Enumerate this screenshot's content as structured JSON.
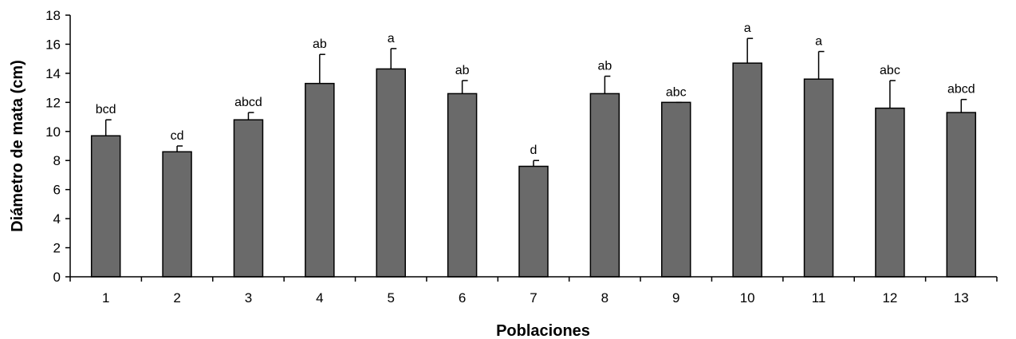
{
  "chart_data": {
    "type": "bar",
    "title": "",
    "xlabel": "Poblaciones",
    "ylabel": "Diámetro de mata (cm)",
    "ylim": [
      0,
      18
    ],
    "yticks": [
      0,
      2,
      4,
      6,
      8,
      10,
      12,
      14,
      16,
      18
    ],
    "categories": [
      "1",
      "2",
      "3",
      "4",
      "5",
      "6",
      "7",
      "8",
      "9",
      "10",
      "11",
      "12",
      "13"
    ],
    "values": [
      9.7,
      8.6,
      10.8,
      13.3,
      14.3,
      12.6,
      7.6,
      12.6,
      12.0,
      14.7,
      13.6,
      11.6,
      11.3
    ],
    "error_upper": [
      1.1,
      0.4,
      0.5,
      2.0,
      1.4,
      0.9,
      0.4,
      1.2,
      0.0,
      1.7,
      1.9,
      1.9,
      0.9
    ],
    "significance_labels": [
      "bcd",
      "cd",
      "abcd",
      "ab",
      "a",
      "ab",
      "d",
      "ab",
      "abc",
      "a",
      "a",
      "abc",
      "abcd"
    ],
    "bar_color": "#6a6a6a",
    "grid": false,
    "legend": "none"
  }
}
